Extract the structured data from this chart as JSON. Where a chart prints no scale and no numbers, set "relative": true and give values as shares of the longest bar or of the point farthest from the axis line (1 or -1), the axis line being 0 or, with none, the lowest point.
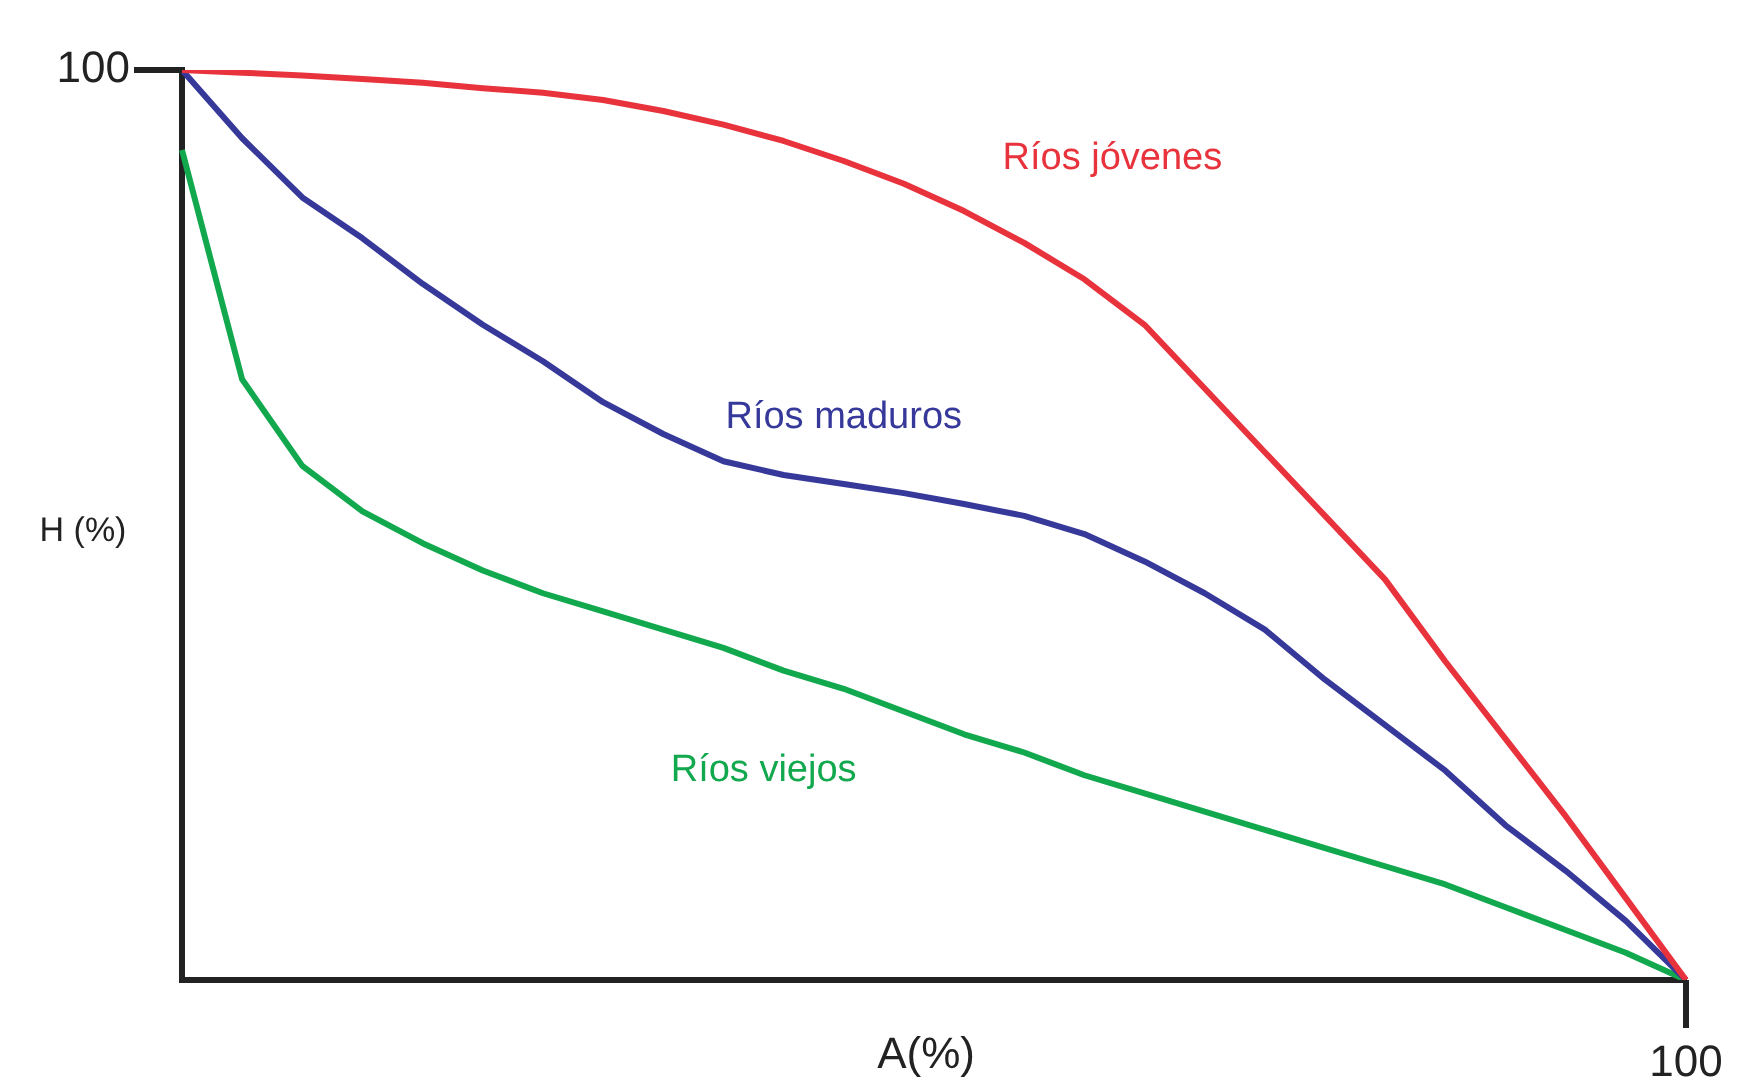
{
  "chart_data": {
    "type": "line",
    "relative": true,
    "xlabel": "A(%)",
    "ylabel": "H (%)",
    "annotations": [
      "100",
      "100"
    ],
    "legend": false,
    "marker": "none",
    "line_style": "solid",
    "categories": [
      null,
      null,
      null,
      null,
      null,
      null,
      null,
      null,
      null,
      null,
      null,
      null,
      null,
      null,
      null,
      null,
      null,
      null,
      null,
      null,
      null,
      null,
      null,
      null,
      null,
      null
    ],
    "series": [
      {
        "name": "Ríos jóvenes",
        "color": "#e8323c",
        "values": [
          1,
          0.997,
          0.994,
          0.99,
          0.986,
          0.98,
          0.975,
          0.967,
          0.955,
          0.94,
          0.922,
          0.9,
          0.875,
          0.845,
          0.81,
          0.77,
          0.72,
          0.65,
          0.58,
          0.51,
          0.44,
          0.35,
          0.265,
          0.18,
          0.09,
          0
        ]
      },
      {
        "name": "Ríos maduros",
        "color": "#36399a",
        "values": [
          1,
          0.925,
          0.86,
          0.815,
          0.765,
          0.72,
          0.68,
          0.635,
          0.6,
          0.57,
          0.555,
          0.545,
          0.535,
          0.523,
          0.51,
          0.49,
          0.46,
          0.425,
          0.385,
          0.33,
          0.28,
          0.23,
          0.17,
          0.12,
          0.065,
          0
        ]
      },
      {
        "name": "Ríos viejos",
        "color": "#12a84e",
        "values": [
          0.912,
          0.66,
          0.565,
          0.515,
          0.48,
          0.45,
          0.425,
          0.405,
          0.385,
          0.365,
          0.34,
          0.32,
          0.295,
          0.27,
          0.25,
          0.225,
          0.205,
          0.185,
          0.165,
          0.145,
          0.125,
          0.105,
          0.08,
          0.055,
          0.03,
          0
        ]
      }
    ]
  }
}
